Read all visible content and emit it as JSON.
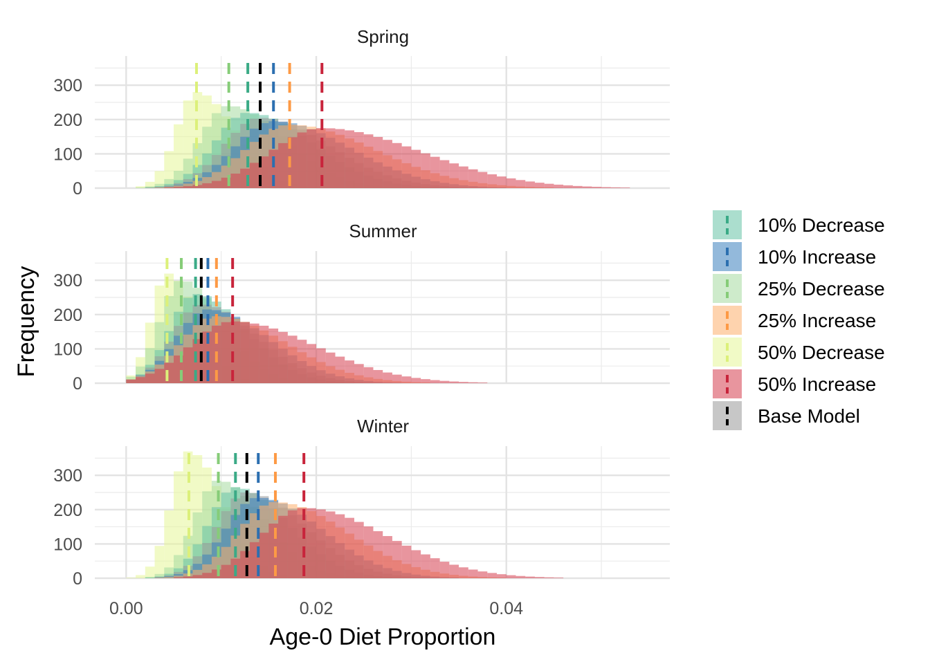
{
  "chart_data": {
    "type": "histogram",
    "xlabel": "Age-0 Diet Proportion",
    "ylabel": "Frequency",
    "xlim": [
      -0.0033,
      0.0572
    ],
    "ylim": [
      0,
      385
    ],
    "x_ticks": [
      0.0,
      0.02,
      0.04
    ],
    "x_tick_labels": [
      "0.00",
      "0.02",
      "0.04"
    ],
    "y_ticks": [
      0,
      100,
      200,
      300
    ],
    "y_tick_labels": [
      "0",
      "100",
      "200",
      "300"
    ],
    "legend": {
      "position": "right",
      "order": [
        "10% Decrease",
        "10% Increase",
        "25% Decrease",
        "25% Increase",
        "50% Decrease",
        "50% Increase",
        "Base Model"
      ]
    },
    "series_colors": {
      "10% Decrease": "#66c2a5",
      "10% Increase": "#3a7fbd",
      "25% Decrease": "#a6dba0",
      "25% Increase": "#fdae6b",
      "50% Decrease": "#e6f598",
      "50% Increase": "#d53e4f",
      "Base Model": "#999999"
    },
    "mean_line_colors": {
      "10% Decrease": "#3aaa86",
      "10% Increase": "#2c6fb0",
      "25% Decrease": "#86cc78",
      "25% Increase": "#fd9a45",
      "50% Decrease": "#dcf07a",
      "50% Increase": "#c8243b",
      "Base Model": "#000000"
    },
    "panels": [
      {
        "title": "Spring",
        "series": [
          {
            "name": "50% Decrease",
            "mean": 0.0074,
            "sd": 0.0028,
            "peak": 280
          },
          {
            "name": "25% Decrease",
            "mean": 0.0108,
            "sd": 0.004,
            "peak": 240
          },
          {
            "name": "10% Decrease",
            "mean": 0.0128,
            "sd": 0.0046,
            "peak": 220
          },
          {
            "name": "Base Model",
            "mean": 0.0141,
            "sd": 0.005,
            "peak": 205
          },
          {
            "name": "10% Increase",
            "mean": 0.0155,
            "sd": 0.0055,
            "peak": 195
          },
          {
            "name": "25% Increase",
            "mean": 0.0172,
            "sd": 0.0062,
            "peak": 185
          },
          {
            "name": "50% Increase",
            "mean": 0.0206,
            "sd": 0.0072,
            "peak": 175
          }
        ]
      },
      {
        "title": "Summer",
        "series": [
          {
            "name": "50% Decrease",
            "mean": 0.0043,
            "sd": 0.0022,
            "peak": 320
          },
          {
            "name": "25% Decrease",
            "mean": 0.0058,
            "sd": 0.003,
            "peak": 300
          },
          {
            "name": "10% Decrease",
            "mean": 0.0073,
            "sd": 0.0036,
            "peak": 260
          },
          {
            "name": "Base Model",
            "mean": 0.0079,
            "sd": 0.004,
            "peak": 230
          },
          {
            "name": "10% Increase",
            "mean": 0.0086,
            "sd": 0.0044,
            "peak": 215
          },
          {
            "name": "25% Increase",
            "mean": 0.0095,
            "sd": 0.005,
            "peak": 195
          },
          {
            "name": "50% Increase",
            "mean": 0.0112,
            "sd": 0.006,
            "peak": 180
          }
        ]
      },
      {
        "title": "Winter",
        "series": [
          {
            "name": "50% Decrease",
            "mean": 0.0066,
            "sd": 0.0025,
            "peak": 370
          },
          {
            "name": "25% Decrease",
            "mean": 0.0097,
            "sd": 0.0033,
            "peak": 285
          },
          {
            "name": "10% Decrease",
            "mean": 0.0115,
            "sd": 0.0038,
            "peak": 265
          },
          {
            "name": "Base Model",
            "mean": 0.0127,
            "sd": 0.0042,
            "peak": 250
          },
          {
            "name": "10% Increase",
            "mean": 0.0139,
            "sd": 0.0046,
            "peak": 235
          },
          {
            "name": "25% Increase",
            "mean": 0.0157,
            "sd": 0.0052,
            "peak": 222
          },
          {
            "name": "50% Increase",
            "mean": 0.0187,
            "sd": 0.006,
            "peak": 205
          }
        ]
      }
    ]
  }
}
